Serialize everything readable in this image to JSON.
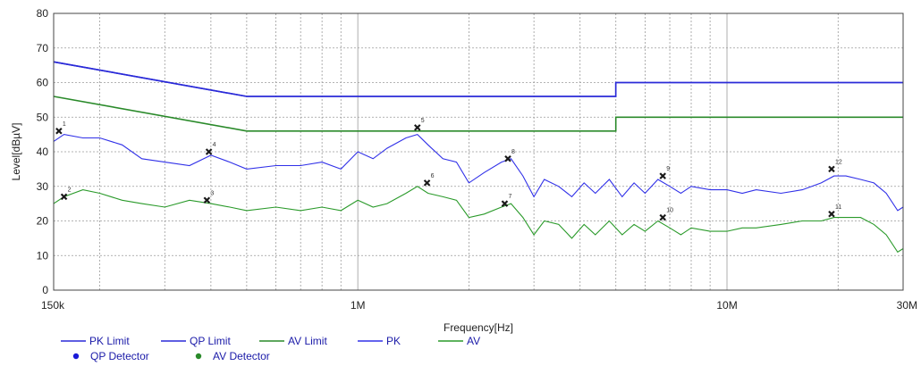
{
  "chart_data": {
    "type": "line",
    "xlabel": "Frequency[Hz]",
    "ylabel": "Level[dBµV]",
    "x_scale": "log",
    "xlim": [
      150000,
      30000000
    ],
    "ylim": [
      0,
      80
    ],
    "grid": true,
    "x_tick_labels": [
      {
        "value": 150000,
        "label": "150k"
      },
      {
        "value": 1000000,
        "label": "1M"
      },
      {
        "value": 10000000,
        "label": "10M"
      },
      {
        "value": 30000000,
        "label": "30M"
      }
    ],
    "y_tick_labels": [
      "0",
      "10",
      "20",
      "30",
      "40",
      "50",
      "60",
      "70",
      "80"
    ],
    "legend_position": "bottom",
    "legend_rows": [
      [
        "PK Limit",
        "QP Limit",
        "AV Limit",
        "PK",
        "AV"
      ],
      [
        "QP Detector",
        "AV Detector"
      ]
    ],
    "series": [
      {
        "name": "PK Limit",
        "type": "line",
        "color": "#2a2ad8",
        "x": [
          150000,
          500000,
          500000,
          5000000,
          5000000,
          30000000
        ],
        "y": [
          66,
          56,
          56,
          56,
          60,
          60
        ]
      },
      {
        "name": "QP Limit",
        "type": "line",
        "color": "#2a2ad8",
        "x": [
          150000,
          500000,
          500000,
          5000000,
          5000000,
          30000000
        ],
        "y": [
          66,
          56,
          56,
          56,
          60,
          60
        ]
      },
      {
        "name": "AV Limit",
        "type": "line",
        "color": "#2a8a2a",
        "x": [
          150000,
          500000,
          500000,
          5000000,
          5000000,
          30000000
        ],
        "y": [
          56,
          46,
          46,
          46,
          50,
          50
        ]
      },
      {
        "name": "PK",
        "type": "line",
        "color": "#3030e8",
        "x": [
          150000,
          160000,
          180000,
          200000,
          230000,
          260000,
          300000,
          350000,
          400000,
          450000,
          500000,
          600000,
          700000,
          800000,
          900000,
          1000000,
          1100000,
          1200000,
          1350000,
          1450000,
          1550000,
          1700000,
          1850000,
          2000000,
          2200000,
          2450000,
          2600000,
          2800000,
          3000000,
          3200000,
          3500000,
          3800000,
          4100000,
          4400000,
          4800000,
          5200000,
          5600000,
          6000000,
          6500000,
          7000000,
          7500000,
          8000000,
          9000000,
          10000000,
          11000000,
          12000000,
          14000000,
          16000000,
          18000000,
          19500000,
          21000000,
          23000000,
          25000000,
          27000000,
          29000000,
          30000000
        ],
        "y": [
          43,
          45,
          44,
          44,
          42,
          38,
          37,
          36,
          39,
          37,
          35,
          36,
          36,
          37,
          35,
          40,
          38,
          41,
          44,
          45,
          42,
          38,
          37,
          31,
          34,
          37,
          38,
          33,
          27,
          32,
          30,
          27,
          31,
          28,
          32,
          27,
          31,
          28,
          32,
          30,
          28,
          30,
          29,
          29,
          28,
          29,
          28,
          29,
          31,
          33,
          33,
          32,
          31,
          28,
          23,
          24
        ]
      },
      {
        "name": "AV",
        "type": "line",
        "color": "#2a9a2a",
        "x": [
          150000,
          160000,
          180000,
          200000,
          230000,
          260000,
          300000,
          350000,
          400000,
          450000,
          500000,
          600000,
          700000,
          800000,
          900000,
          1000000,
          1100000,
          1200000,
          1350000,
          1450000,
          1550000,
          1700000,
          1850000,
          2000000,
          2200000,
          2450000,
          2600000,
          2800000,
          3000000,
          3200000,
          3500000,
          3800000,
          4100000,
          4400000,
          4800000,
          5200000,
          5600000,
          6000000,
          6500000,
          7000000,
          7500000,
          8000000,
          9000000,
          10000000,
          11000000,
          12000000,
          14000000,
          16000000,
          18000000,
          19500000,
          21000000,
          23000000,
          25000000,
          27000000,
          29000000,
          30000000
        ],
        "y": [
          25,
          27,
          29,
          28,
          26,
          25,
          24,
          26,
          25,
          24,
          23,
          24,
          23,
          24,
          23,
          26,
          24,
          25,
          28,
          30,
          28,
          27,
          26,
          21,
          22,
          24,
          25,
          21,
          16,
          20,
          19,
          15,
          19,
          16,
          20,
          16,
          19,
          17,
          20,
          18,
          16,
          18,
          17,
          17,
          18,
          18,
          19,
          20,
          20,
          21,
          21,
          21,
          19,
          16,
          11,
          12
        ]
      },
      {
        "name": "QP Detector",
        "type": "scatter",
        "color": "#1a1a1a",
        "x": [
          155000,
          395000,
          1450000,
          2550000,
          6700000,
          19200000
        ],
        "y": [
          46,
          40,
          47,
          38,
          33,
          35
        ],
        "labels": [
          "1",
          "4",
          "5",
          "8",
          "9",
          "12"
        ]
      },
      {
        "name": "AV Detector",
        "type": "scatter",
        "color": "#1a1a1a",
        "x": [
          160000,
          390000,
          1540000,
          2500000,
          6700000,
          19200000
        ],
        "y": [
          27,
          26,
          31,
          25,
          21,
          22
        ],
        "labels": [
          "2",
          "3",
          "6",
          "7",
          "10",
          "11"
        ]
      }
    ]
  }
}
